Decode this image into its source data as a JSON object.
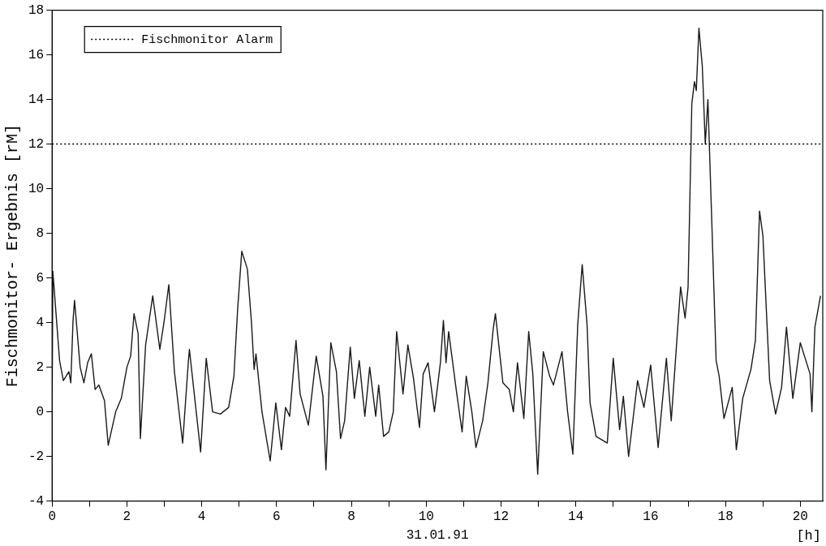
{
  "chart_data": {
    "type": "line",
    "xlabel": "31.01.91",
    "ylabel": "Fischmonitor- Ergebnis [rM]",
    "annotations": [
      "[h]"
    ],
    "xlim": [
      0,
      20.6
    ],
    "ylim": [
      -4,
      18
    ],
    "xticks": [
      0,
      {
        "value": 1,
        "label": null
      },
      2,
      {
        "value": 3,
        "label": null
      },
      4,
      {
        "value": 5,
        "label": null
      },
      6,
      {
        "value": 7,
        "label": null
      },
      8,
      {
        "value": 9,
        "label": null
      },
      10,
      {
        "value": 11,
        "label": null
      },
      12,
      {
        "value": 13,
        "label": null
      },
      14,
      {
        "value": 15,
        "label": null
      },
      16,
      {
        "value": 17,
        "label": null
      },
      18,
      {
        "value": 19,
        "label": null
      },
      20
    ],
    "yticks": [
      -4,
      -2,
      0,
      2,
      4,
      6,
      8,
      10,
      12,
      14,
      16,
      18
    ],
    "grid": false,
    "legend": "top left",
    "marker": "none",
    "line_style": "solid",
    "ref_lines": [
      {
        "axis": "y",
        "value": 12,
        "label": "Fischmonitor Alarm",
        "line_style": "dotted",
        "color": "#000000"
      }
    ],
    "series": [
      {
        "color": "#1a1a1a",
        "x": [
          0,
          0.02,
          0.2,
          0.3,
          0.45,
          0.5,
          0.56,
          0.6,
          0.75,
          0.85,
          0.95,
          1.05,
          1.15,
          1.25,
          1.4,
          1.5,
          1.7,
          1.85,
          2.0,
          2.1,
          2.19,
          2.3,
          2.36,
          2.5,
          2.69,
          2.88,
          2.99,
          3.12,
          3.27,
          3.49,
          3.64,
          3.67,
          3.97,
          4.12,
          4.29,
          4.5,
          4.72,
          4.86,
          4.96,
          5.07,
          5.22,
          5.33,
          5.4,
          5.45,
          5.61,
          5.83,
          5.98,
          6.13,
          6.24,
          6.35,
          6.52,
          6.63,
          6.85,
          7.06,
          7.24,
          7.32,
          7.45,
          7.6,
          7.71,
          7.82,
          7.97,
          8.08,
          8.21,
          8.36,
          8.49,
          8.65,
          8.73,
          8.86,
          9.0,
          9.12,
          9.21,
          9.38,
          9.51,
          9.66,
          9.82,
          9.92,
          10.05,
          10.22,
          10.38,
          10.46,
          10.53,
          10.6,
          10.81,
          10.96,
          11.07,
          11.22,
          11.33,
          11.51,
          11.65,
          11.79,
          11.85,
          12.05,
          12.22,
          12.33,
          12.44,
          12.61,
          12.74,
          12.85,
          12.98,
          13.13,
          13.3,
          13.4,
          13.63,
          13.78,
          13.92,
          14.05,
          14.17,
          14.3,
          14.38,
          14.54,
          14.84,
          15.0,
          15.17,
          15.27,
          15.41,
          15.65,
          15.82,
          16.0,
          16.2,
          16.42,
          16.55,
          16.8,
          16.92,
          17.0,
          17.1,
          17.17,
          17.22,
          17.29,
          17.38,
          17.46,
          17.53,
          17.64,
          17.75,
          17.83,
          17.96,
          18.18,
          18.29,
          18.46,
          18.68,
          18.8,
          18.91,
          19.0,
          19.18,
          19.34,
          19.5,
          19.63,
          19.8,
          20.0,
          20.26,
          20.31,
          20.39,
          20.54
        ],
        "values": [
          0,
          6.3,
          2.3,
          1.4,
          1.8,
          1.3,
          4.1,
          5.0,
          2.0,
          1.3,
          2.2,
          2.6,
          1.0,
          1.2,
          0.5,
          -1.5,
          0,
          0.6,
          2.0,
          2.5,
          4.4,
          3.5,
          -1.2,
          3.0,
          5.2,
          2.8,
          4.0,
          5.7,
          1.8,
          -1.4,
          2.2,
          2.8,
          -1.8,
          2.4,
          0,
          -0.1,
          0.2,
          1.6,
          4.6,
          7.2,
          6.4,
          4.0,
          1.9,
          2.6,
          0,
          -2.2,
          0.4,
          -1.7,
          0.2,
          -0.2,
          3.2,
          0.8,
          -0.6,
          2.5,
          0.7,
          -2.6,
          3.1,
          1.8,
          -1.2,
          -0.4,
          2.9,
          0.6,
          2.3,
          -0.2,
          2.0,
          -0.2,
          1.2,
          -1.1,
          -0.9,
          0,
          3.6,
          0.8,
          3.0,
          1.5,
          -0.7,
          1.7,
          2.2,
          0,
          2.2,
          4.1,
          2.2,
          3.6,
          0.9,
          -0.9,
          1.6,
          0,
          -1.6,
          -0.4,
          1.3,
          3.7,
          4.4,
          1.3,
          1.0,
          0,
          2.2,
          -0.3,
          3.6,
          1.7,
          -2.8,
          2.7,
          1.6,
          1.2,
          2.7,
          0,
          -1.9,
          3.9,
          6.6,
          3.9,
          0.4,
          -1.1,
          -1.4,
          2.4,
          -0.8,
          0.7,
          -2.0,
          1.4,
          0.2,
          2.1,
          -1.6,
          2.4,
          -0.4,
          5.6,
          4.2,
          5.6,
          13.8,
          14.8,
          14.4,
          17.2,
          15.5,
          12.0,
          14.0,
          8.2,
          2.3,
          1.6,
          -0.3,
          1.1,
          -1.7,
          0.6,
          1.9,
          3.2,
          9.0,
          7.9,
          1.4,
          -0.1,
          1.1,
          3.8,
          0.6,
          3.1,
          1.7,
          0,
          3.8,
          5.2
        ]
      }
    ]
  }
}
